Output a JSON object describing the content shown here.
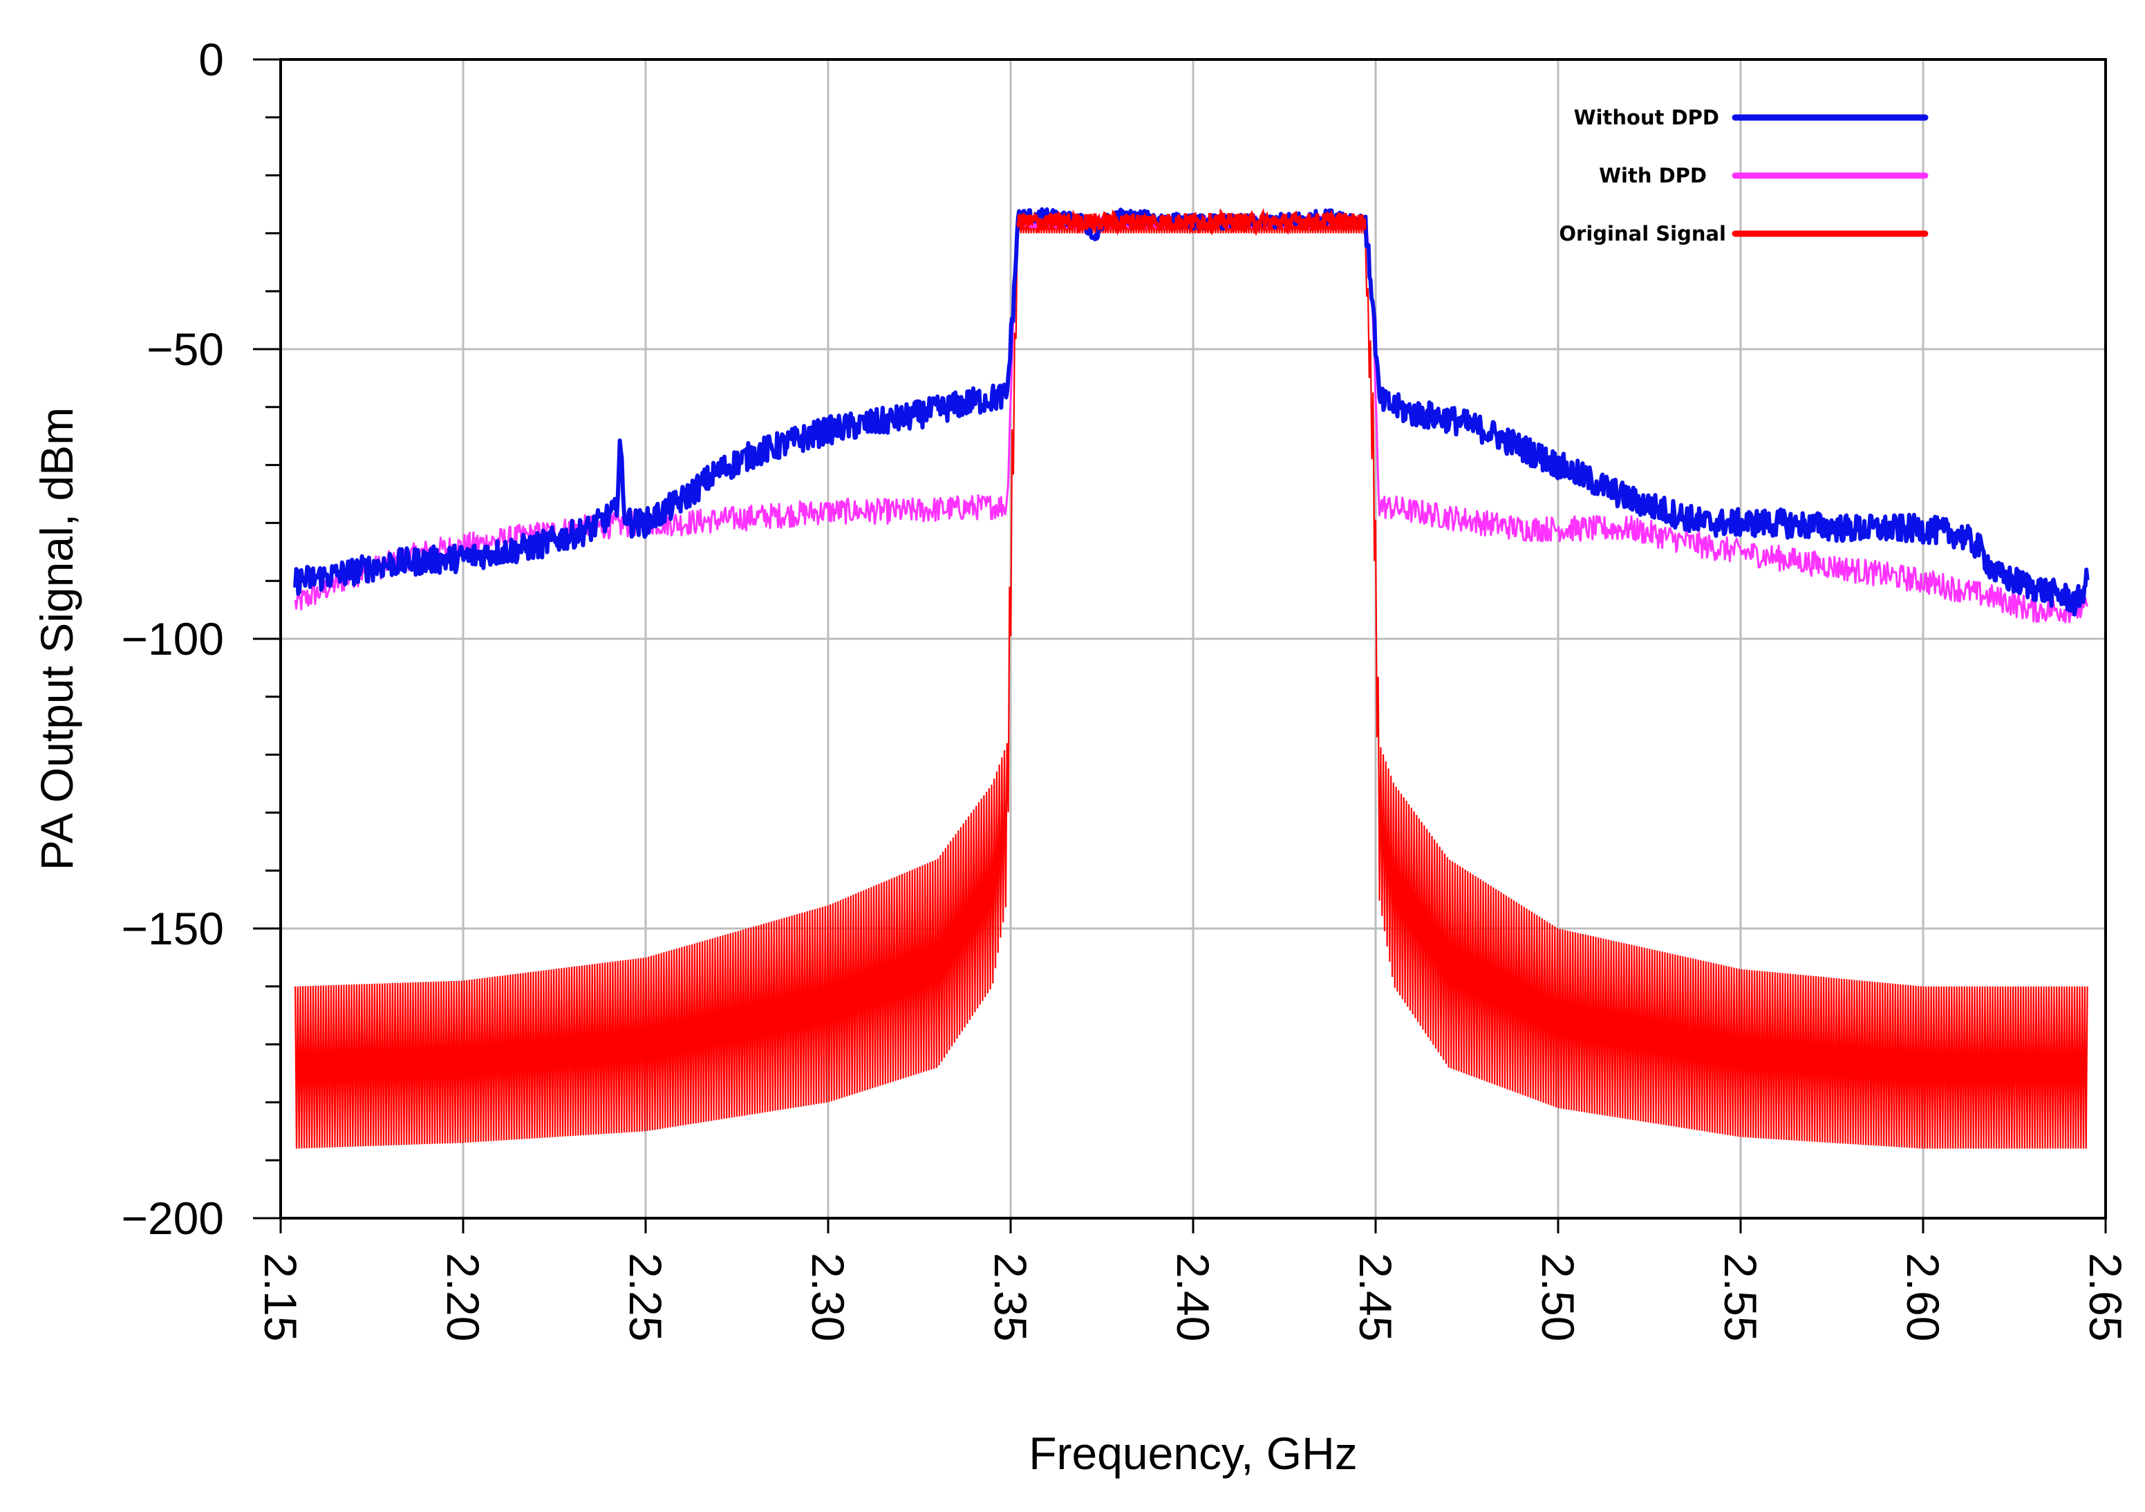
{
  "chart_data": {
    "type": "line",
    "title": "",
    "xlabel": "Frequency, GHz",
    "ylabel": "PA Output Signal, dBm",
    "xlim": [
      2.15,
      2.65
    ],
    "ylim": [
      -200,
      0
    ],
    "grid": true,
    "legend_position": "top-right",
    "x_ticks": [
      "2.15",
      "2.20",
      "2.25",
      "2.30",
      "2.35",
      "2.40",
      "2.45",
      "2.50",
      "2.55",
      "2.60",
      "2.65"
    ],
    "y_ticks": [
      "0",
      "−50",
      "−100",
      "−150",
      "−200"
    ],
    "series": [
      {
        "name": "Without DPD",
        "color": "#0a10e8",
        "x": [
          2.154,
          2.165,
          2.18,
          2.2,
          2.22,
          2.235,
          2.242,
          2.243,
          2.244,
          2.246,
          2.25,
          2.26,
          2.27,
          2.28,
          2.3,
          2.32,
          2.34,
          2.349,
          2.351,
          2.352,
          2.36,
          2.37,
          2.373,
          2.376,
          2.38,
          2.4,
          2.42,
          2.44,
          2.447,
          2.449,
          2.451,
          2.46,
          2.47,
          2.48,
          2.5,
          2.52,
          2.53,
          2.54,
          2.55,
          2.56,
          2.58,
          2.6,
          2.61,
          2.615,
          2.62,
          2.63,
          2.64,
          2.642,
          2.645
        ],
        "y": [
          -90,
          -89,
          -87,
          -86,
          -84,
          -81,
          -78,
          -65,
          -78,
          -80,
          -80,
          -76,
          -71,
          -68,
          -64,
          -62,
          -59,
          -58,
          -40,
          -27,
          -27,
          -28,
          -31,
          -28,
          -27,
          -28,
          -28,
          -27,
          -28,
          -40,
          -59,
          -61,
          -62,
          -64,
          -70,
          -76,
          -78,
          -80,
          -80,
          -80,
          -81,
          -81,
          -82,
          -84,
          -89,
          -91,
          -93,
          -94,
          -90
        ]
      },
      {
        "name": "With DPD",
        "color": "#ff33ff",
        "x": [
          2.154,
          2.17,
          2.19,
          2.21,
          2.23,
          2.25,
          2.26,
          2.28,
          2.3,
          2.32,
          2.349,
          2.351,
          2.352,
          2.4,
          2.447,
          2.449,
          2.451,
          2.47,
          2.49,
          2.5,
          2.52,
          2.54,
          2.56,
          2.58,
          2.6,
          2.62,
          2.63,
          2.645
        ],
        "y": [
          -94,
          -89,
          -85,
          -83,
          -81,
          -80,
          -80,
          -79,
          -78,
          -78,
          -77,
          -40,
          -28,
          -28,
          -28,
          -40,
          -77,
          -79,
          -81,
          -81,
          -81,
          -84,
          -86,
          -88,
          -90,
          -93,
          -95,
          -95
        ]
      },
      {
        "name": "Original Signal",
        "color": "#ff0000",
        "x": [
          2.154,
          2.2,
          2.25,
          2.3,
          2.33,
          2.345,
          2.349,
          2.3505,
          2.352,
          2.4,
          2.447,
          2.4495,
          2.451,
          2.455,
          2.47,
          2.5,
          2.55,
          2.6,
          2.645
        ],
        "y_upper": [
          -160,
          -159,
          -155,
          -146,
          -138,
          -125,
          -118,
          -60,
          -28,
          -28,
          -28,
          -60,
          -118,
          -125,
          -138,
          -150,
          -157,
          -160,
          -160
        ],
        "y_lower": [
          -188,
          -187,
          -185,
          -180,
          -174,
          -160,
          -145,
          -80,
          -30,
          -30,
          -30,
          -80,
          -145,
          -160,
          -174,
          -181,
          -186,
          -188,
          -188
        ]
      }
    ]
  }
}
